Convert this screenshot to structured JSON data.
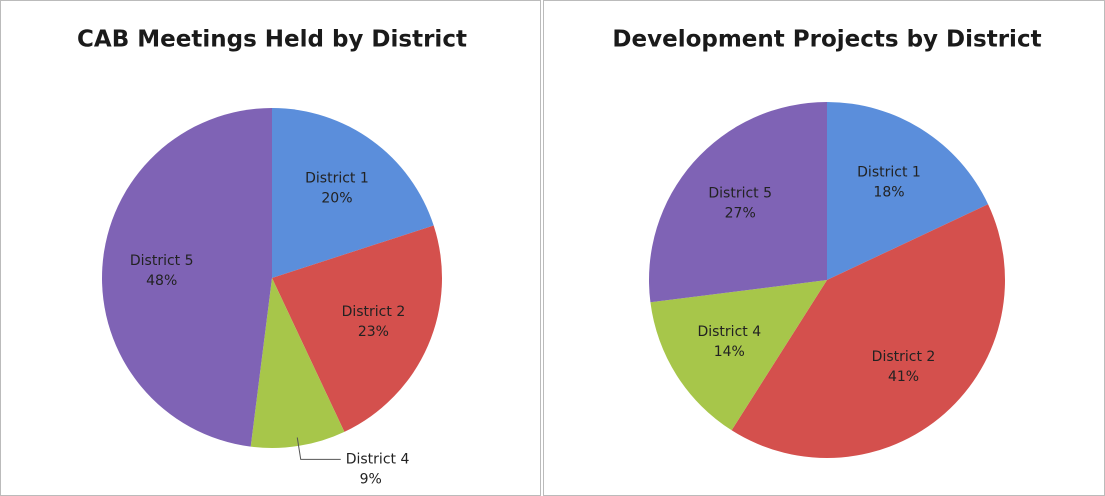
{
  "chart_data": [
    {
      "type": "pie",
      "title": "CAB Meetings Held by District",
      "categories": [
        "District 1",
        "District 2",
        "District 4",
        "District 5"
      ],
      "values": [
        20,
        23,
        9,
        48
      ],
      "value_labels": [
        "20%",
        "23%",
        "9%",
        "48%"
      ],
      "colors": [
        "#5b8edb",
        "#d4504d",
        "#a7c64a",
        "#7f63b5"
      ]
    },
    {
      "type": "pie",
      "title": "Development Projects by District",
      "categories": [
        "District 1",
        "District 2",
        "District 4",
        "District 5"
      ],
      "values": [
        18,
        41,
        14,
        27
      ],
      "value_labels": [
        "18%",
        "41%",
        "14%",
        "27%"
      ],
      "colors": [
        "#5b8edb",
        "#d4504d",
        "#a7c64a",
        "#7f63b5"
      ]
    }
  ]
}
